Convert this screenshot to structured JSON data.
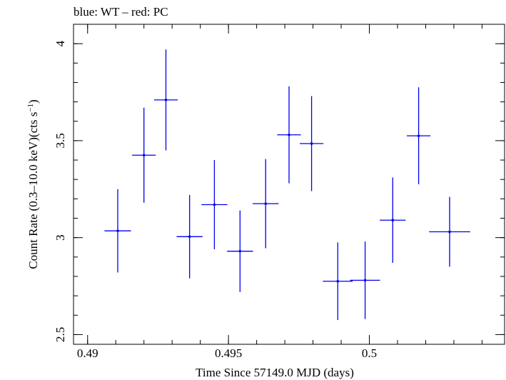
{
  "chart_data": {
    "type": "scatter",
    "title": "blue: WT – red: PC",
    "xlabel": "Time Since 57149.0 MJD (days)",
    "ylabel_main": "Count Rate (0.3–10.0 keV)(cts s",
    "ylabel_sup": "−1",
    "ylabel_close": ")",
    "xlim": [
      0.4895,
      0.5048
    ],
    "ylim": [
      2.45,
      4.1
    ],
    "x_ticks": [
      {
        "value": 0.49,
        "label": "0.49"
      },
      {
        "value": 0.495,
        "label": "0.495"
      },
      {
        "value": 0.5,
        "label": "0.5"
      }
    ],
    "x_minor_step": 0.001,
    "y_ticks": [
      {
        "value": 2.5,
        "label": "2.5"
      },
      {
        "value": 3.0,
        "label": "3"
      },
      {
        "value": 3.5,
        "label": "3.5"
      },
      {
        "value": 4.0,
        "label": "4"
      }
    ],
    "y_minor_step": 0.1,
    "grid": false,
    "series": [
      {
        "color": "#0000ee",
        "points": [
          {
            "x": 0.49107,
            "xerr": 0.00047,
            "y": 3.035,
            "yerr": 0.215
          },
          {
            "x": 0.492,
            "xerr": 0.00042,
            "y": 3.425,
            "yerr": 0.245
          },
          {
            "x": 0.49278,
            "xerr": 0.00042,
            "y": 3.71,
            "yerr": 0.26
          },
          {
            "x": 0.49362,
            "xerr": 0.00046,
            "y": 3.005,
            "yerr": 0.215
          },
          {
            "x": 0.4945,
            "xerr": 0.00046,
            "y": 3.17,
            "yerr": 0.23
          },
          {
            "x": 0.49541,
            "xerr": 0.00046,
            "y": 2.93,
            "yerr": 0.21
          },
          {
            "x": 0.49632,
            "xerr": 0.00046,
            "y": 3.175,
            "yerr": 0.23
          },
          {
            "x": 0.49715,
            "xerr": 0.00042,
            "y": 3.53,
            "yerr": 0.25
          },
          {
            "x": 0.49795,
            "xerr": 0.00042,
            "y": 3.485,
            "yerr": 0.245
          },
          {
            "x": 0.49888,
            "xerr": 0.00053,
            "y": 2.775,
            "yerr": 0.2
          },
          {
            "x": 0.49985,
            "xerr": 0.00053,
            "y": 2.78,
            "yerr": 0.2
          },
          {
            "x": 0.50083,
            "xerr": 0.00046,
            "y": 3.09,
            "yerr": 0.22
          },
          {
            "x": 0.50175,
            "xerr": 0.00042,
            "y": 3.525,
            "yerr": 0.25
          },
          {
            "x": 0.50285,
            "xerr": 0.00073,
            "y": 3.03,
            "yerr": 0.18
          }
        ]
      }
    ]
  }
}
